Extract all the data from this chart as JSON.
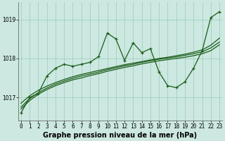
{
  "hours": [
    0,
    1,
    2,
    3,
    4,
    5,
    6,
    7,
    8,
    9,
    10,
    11,
    12,
    13,
    14,
    15,
    16,
    17,
    18,
    19,
    20,
    21,
    22,
    23
  ],
  "main_line": [
    1016.6,
    1017.0,
    1017.1,
    1017.55,
    1017.75,
    1017.85,
    1017.8,
    1017.85,
    1017.9,
    1018.05,
    1018.65,
    1018.5,
    1017.95,
    1018.4,
    1018.15,
    1018.25,
    1017.65,
    1017.3,
    1017.25,
    1017.4,
    1017.75,
    1018.2,
    1019.05,
    1019.2
  ],
  "smooth_line1": [
    1016.7,
    1016.92,
    1017.08,
    1017.2,
    1017.3,
    1017.38,
    1017.45,
    1017.5,
    1017.56,
    1017.61,
    1017.67,
    1017.72,
    1017.77,
    1017.81,
    1017.86,
    1017.9,
    1017.94,
    1017.97,
    1018.0,
    1018.03,
    1018.07,
    1018.12,
    1018.2,
    1018.35
  ],
  "smooth_line2": [
    1016.75,
    1016.97,
    1017.12,
    1017.24,
    1017.34,
    1017.42,
    1017.49,
    1017.55,
    1017.6,
    1017.65,
    1017.71,
    1017.76,
    1017.81,
    1017.85,
    1017.9,
    1017.94,
    1017.98,
    1018.01,
    1018.04,
    1018.08,
    1018.12,
    1018.17,
    1018.27,
    1018.42
  ],
  "smooth_line3": [
    1016.85,
    1017.04,
    1017.18,
    1017.29,
    1017.38,
    1017.46,
    1017.53,
    1017.59,
    1017.64,
    1017.69,
    1017.74,
    1017.79,
    1017.84,
    1017.88,
    1017.92,
    1017.96,
    1018.0,
    1018.03,
    1018.07,
    1018.11,
    1018.16,
    1018.22,
    1018.34,
    1018.52
  ],
  "bg_color": "#cce8e0",
  "grid_color": "#99ccbb",
  "line_color": "#1a5c1a",
  "marker_style": "+",
  "xlabel": "Graphe pression niveau de la mer (hPa)",
  "ylim": [
    1016.4,
    1019.45
  ],
  "yticks": [
    1017,
    1018,
    1019
  ],
  "tick_fontsize": 5.5,
  "xlabel_fontsize": 7
}
